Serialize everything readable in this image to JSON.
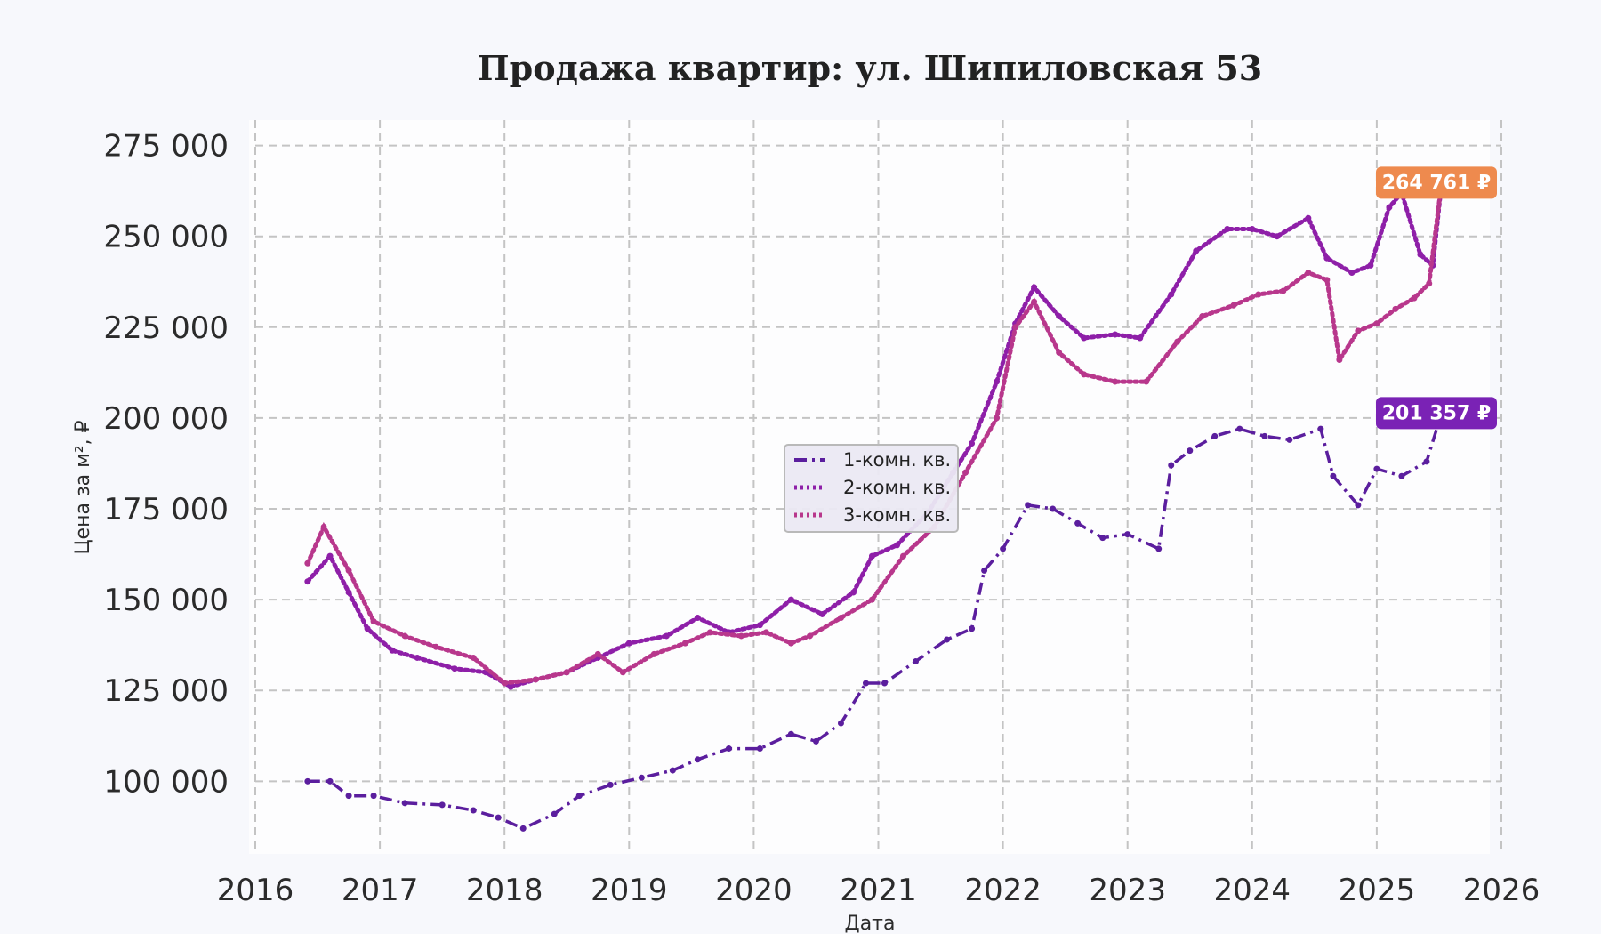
{
  "chart_data": {
    "type": "line",
    "title": "Продажа квартир: ул. Шипиловская 53",
    "xlabel": "Дата",
    "ylabel": "Цена за м², ₽",
    "xlim": [
      2016,
      2026
    ],
    "ylim": [
      80000,
      282000
    ],
    "x_ticks": [
      "2016",
      "2017",
      "2018",
      "2019",
      "2020",
      "2021",
      "2022",
      "2023",
      "2024",
      "2025",
      "2026"
    ],
    "y_ticks": [
      "100 000",
      "125 000",
      "150 000",
      "175 000",
      "200 000",
      "225 000",
      "250 000",
      "275 000"
    ],
    "grid": true,
    "legend_position": "center",
    "series": [
      {
        "name": "1-комн. кв.",
        "color": "#5b1e9e",
        "style": "dashdot",
        "x": [
          2016.42,
          2016.6,
          2016.75,
          2016.95,
          2017.2,
          2017.5,
          2017.75,
          2017.95,
          2018.15,
          2018.4,
          2018.6,
          2018.85,
          2019.1,
          2019.35,
          2019.55,
          2019.8,
          2020.05,
          2020.3,
          2020.5,
          2020.7,
          2020.9,
          2021.05,
          2021.3,
          2021.55,
          2021.75,
          2021.85,
          2022.0,
          2022.2,
          2022.4,
          2022.6,
          2022.8,
          2023.0,
          2023.25,
          2023.35,
          2023.5,
          2023.7,
          2023.9,
          2024.1,
          2024.3,
          2024.55,
          2024.65,
          2024.85,
          2025.0,
          2025.2,
          2025.4,
          2025.52
        ],
        "values": [
          100000,
          100000,
          96000,
          96000,
          94000,
          93500,
          92000,
          90000,
          87000,
          91000,
          96000,
          99000,
          101000,
          103000,
          106000,
          109000,
          109000,
          113000,
          111000,
          116000,
          127000,
          127000,
          133000,
          139000,
          142000,
          158000,
          164000,
          176000,
          175000,
          171000,
          167000,
          168000,
          164000,
          187000,
          191000,
          195000,
          197000,
          195000,
          194000,
          197000,
          184000,
          176000,
          186000,
          184000,
          188000,
          201357
        ]
      },
      {
        "name": "2-комн. кв.",
        "color": "#8e1fa8",
        "style": "dotted",
        "x": [
          2016.42,
          2016.6,
          2016.75,
          2016.9,
          2017.1,
          2017.3,
          2017.6,
          2017.85,
          2018.05,
          2018.25,
          2018.5,
          2018.75,
          2019.0,
          2019.3,
          2019.55,
          2019.8,
          2020.05,
          2020.3,
          2020.55,
          2020.8,
          2020.95,
          2021.15,
          2021.4,
          2021.6,
          2021.75,
          2021.95,
          2022.1,
          2022.25,
          2022.45,
          2022.65,
          2022.9,
          2023.1,
          2023.35,
          2023.55,
          2023.8,
          2024.0,
          2024.2,
          2024.45,
          2024.6,
          2024.8,
          2024.95,
          2025.1,
          2025.2,
          2025.35,
          2025.45,
          2025.52
        ],
        "values": [
          155000,
          162000,
          152000,
          142000,
          136000,
          134000,
          131000,
          130000,
          126000,
          128000,
          130000,
          134000,
          138000,
          140000,
          145000,
          141000,
          143000,
          150000,
          146000,
          152000,
          162000,
          165000,
          174000,
          185000,
          193000,
          210000,
          226000,
          236000,
          228000,
          222000,
          223000,
          222000,
          234000,
          246000,
          252000,
          252000,
          250000,
          255000,
          244000,
          240000,
          242000,
          258000,
          262000,
          245000,
          242000,
          264761
        ]
      },
      {
        "name": "3-комн. кв.",
        "color": "#b8378c",
        "style": "dotted",
        "x": [
          2016.42,
          2016.55,
          2016.75,
          2016.95,
          2017.2,
          2017.45,
          2017.75,
          2018.0,
          2018.25,
          2018.5,
          2018.75,
          2018.95,
          2019.2,
          2019.45,
          2019.65,
          2019.9,
          2020.1,
          2020.3,
          2020.45,
          2020.7,
          2020.95,
          2021.2,
          2021.45,
          2021.7,
          2021.95,
          2022.1,
          2022.25,
          2022.45,
          2022.65,
          2022.9,
          2023.15,
          2023.4,
          2023.6,
          2023.85,
          2024.05,
          2024.25,
          2024.45,
          2024.6,
          2024.7,
          2024.85,
          2025.0,
          2025.15,
          2025.3,
          2025.42,
          2025.52
        ],
        "values": [
          160000,
          170000,
          158000,
          144000,
          140000,
          137000,
          134000,
          127000,
          128000,
          130000,
          135000,
          130000,
          135000,
          138000,
          141000,
          140000,
          141000,
          138000,
          140000,
          145000,
          150000,
          162000,
          170000,
          185000,
          200000,
          225000,
          232000,
          218000,
          212000,
          210000,
          210000,
          221000,
          228000,
          231000,
          234000,
          235000,
          240000,
          238000,
          216000,
          224000,
          226000,
          230000,
          233000,
          237000,
          264761
        ]
      }
    ],
    "callouts": [
      {
        "series": "2-комн. кв.",
        "label": "264 761 ₽",
        "color": "#ee8a4e"
      },
      {
        "series": "1-комн. кв.",
        "label": "201 357 ₽",
        "color": "#7a22b5"
      }
    ]
  }
}
